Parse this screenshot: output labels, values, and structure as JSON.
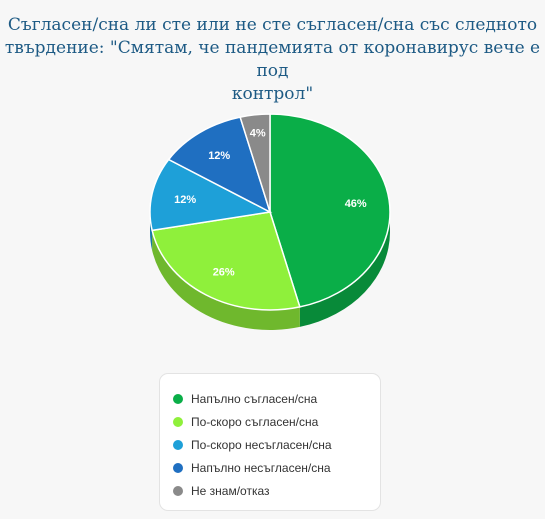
{
  "title_lines": [
    "Съгласен/сна ли сте или не сте съгласен/сна със следното",
    "твърдение: \"Смятам, че пандемията от коронавирус вече е под",
    "контрол\""
  ],
  "chart_data": {
    "type": "pie",
    "title": "Съгласен/сна ли сте или не сте съгласен/сна със следното твърдение: \"Смятам, че пандемията от коронавирус вече е под контрол\"",
    "slices": [
      {
        "label": "Напълно съгласен/сна",
        "value": 46,
        "display": "46%",
        "color": "#0aae48",
        "side": "#088a39"
      },
      {
        "label": "По-скоро съгласен/сна",
        "value": 26,
        "display": "26%",
        "color": "#8ff03b",
        "side": "#6fb82d"
      },
      {
        "label": "По-скоро несъгласен/сна",
        "value": 12,
        "display": "12%",
        "color": "#1ea0d8",
        "side": "#167aa6"
      },
      {
        "label": "Напълно несъгласен/сна",
        "value": 12,
        "display": "12%",
        "color": "#1f6fc1",
        "side": "#175595"
      },
      {
        "label": "Не знам/отказ",
        "value": 4,
        "display": "4%",
        "color": "#8a8a8a",
        "side": "#6b6b6b"
      }
    ],
    "legend_position": "bottom"
  }
}
